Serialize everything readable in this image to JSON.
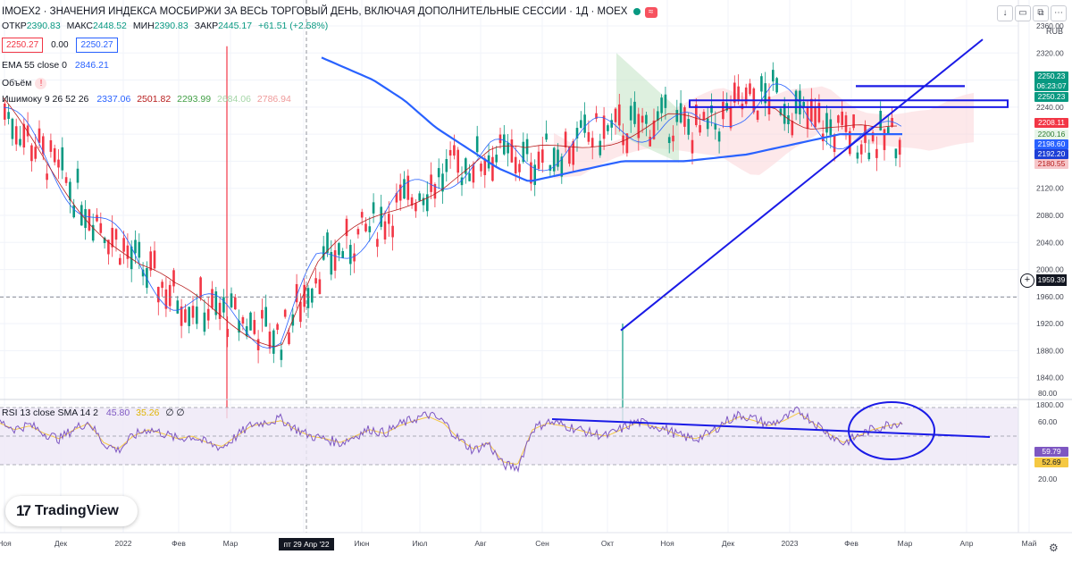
{
  "header": {
    "title": "IMOEX2 · ЗНАЧЕНИЯ ИНДЕКСА МОСБИРЖИ ЗА ВЕСЬ ТОРГОВЫЙ ДЕНЬ, ВКЛЮЧАЯ ДОПОЛНИТЕЛЬНЫЕ СЕССИИ · 1Д · MOEX",
    "ohlc": {
      "open_label": "ОТКР",
      "open": "2390.83",
      "high_label": "МАКС",
      "high": "2448.52",
      "low_label": "МИН",
      "low": "2390.83",
      "close_label": "ЗАКР",
      "close": "2445.17",
      "change": "+61.51 (+2.58%)"
    },
    "bid": "2250.27",
    "spread": "0.00",
    "ask": "2250.27",
    "ema_label": "EMA 55 close 0",
    "ema_value": "2846.21",
    "volume_label": "Объём",
    "ichimoku_label": "Ишимоку 9 26 52 26",
    "ichimoku_values": [
      "2337.06",
      "2501.82",
      "2293.99",
      "2684.06",
      "2786.94"
    ],
    "currency": "RUB"
  },
  "rsi_legend": {
    "label": "RSI 13 close SMA 14 2",
    "rsi": "45.80",
    "sma": "35.26",
    "extra": "∅ ∅"
  },
  "price_tags": {
    "last": "2250.23",
    "countdown": "06:23:07",
    "last2": "2250.23",
    "t1": "2208.11",
    "t2": "2200.16",
    "t3": "2198.60",
    "t4": "2192.20",
    "t5": "2180.55",
    "crosshair": "1959.39"
  },
  "rsi_tags": {
    "rsi": "59.79",
    "sma": "52.69"
  },
  "crosshair_date": "пт 29 Апр '22",
  "brand": "TradingView",
  "colors": {
    "up": "#089981",
    "down": "#f23645",
    "ema": "#2962ff",
    "drawing": "#1a1ae6",
    "rsi": "#7e57c2",
    "rsi_ma": "#f5c842"
  },
  "chart_data": {
    "type": "candlestick",
    "price_axis": {
      "range": [
        1760,
        2360
      ],
      "ticks": [
        2360,
        2320,
        2280,
        2240,
        2200,
        2160,
        2120,
        2080,
        2040,
        2000,
        1960,
        1920,
        1880,
        1840,
        1800
      ]
    },
    "rsi_axis": {
      "range": [
        0,
        100
      ],
      "ticks": [
        80,
        60,
        40,
        20
      ]
    },
    "time_axis": [
      "Ноя",
      "Дек",
      "2022",
      "Фев",
      "Мар",
      "Апр",
      "Июн",
      "Июл",
      "Авг",
      "Сен",
      "Окт",
      "Ноя",
      "Дек",
      "2023",
      "Фев",
      "Мар",
      "Апр",
      "Май"
    ],
    "price_levels": [
      2240,
      2180,
      2120,
      2060,
      2000,
      1960,
      1940,
      1920,
      1900,
      2000,
      2040,
      2080,
      2120,
      2150,
      2170,
      2160,
      2180,
      2200,
      2210,
      2220,
      2200,
      2240,
      2260,
      2220,
      2200,
      2190,
      2210,
      2230,
      2250,
      2250
    ],
    "ema_levels": [
      2390,
      2360,
      2340,
      2320,
      2290,
      2260,
      2240,
      2230,
      2240,
      2290,
      2320,
      2300,
      2280,
      2250,
      2210,
      2180,
      2150,
      2130,
      2140,
      2150,
      2160,
      2160,
      2160,
      2165,
      2170,
      2180,
      2190,
      2200,
      2200,
      2200
    ],
    "rsi_values": [
      60,
      55,
      58,
      52,
      48,
      55,
      60,
      45,
      40,
      50,
      55,
      52,
      48,
      50,
      45,
      42,
      50,
      58,
      60,
      62,
      55,
      50,
      48,
      45,
      50,
      55,
      52,
      58,
      62,
      65,
      60,
      48,
      40,
      45,
      30,
      28,
      55,
      60,
      58,
      55,
      52,
      50,
      55,
      60,
      58,
      55,
      50,
      48,
      52,
      60,
      65,
      62,
      58,
      62,
      68,
      60,
      52,
      45,
      50,
      55,
      58,
      60
    ],
    "rsi_levels": {
      "upper": 70,
      "middle": 50,
      "lower": 30
    }
  }
}
